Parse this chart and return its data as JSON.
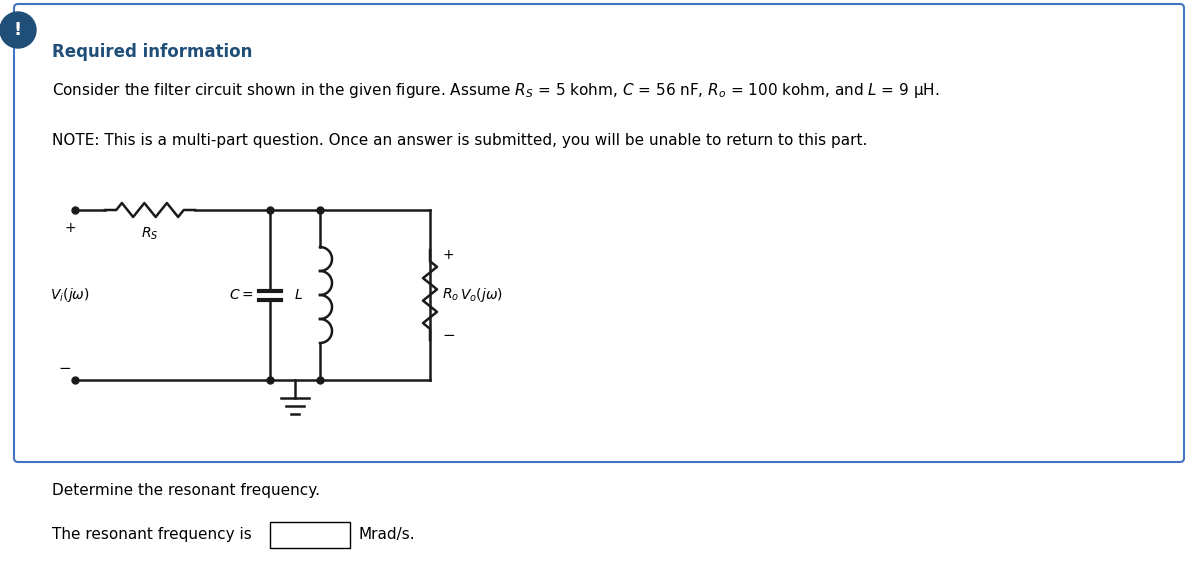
{
  "title": "Required information",
  "line1_plain": "Consider the filter circuit shown in the given figure. Assume ",
  "line1_formula": "R_S = 5 kohm, C = 56 nF, R_o = 100 kohm, and L = 9 μH.",
  "line2": "NOTE: This is a multi-part question. Once an answer is submitted, you will be unable to return to this part.",
  "bottom_line1": "Determine the resonant frequency.",
  "bottom_line2": "The resonant frequency is",
  "bottom_line2_end": "Mrad/s.",
  "title_color": "#1f4e79",
  "text_color": "#333333",
  "border_color": "#4472c4",
  "icon_bg_color": "#1f4e79",
  "icon_text": "!",
  "background_color": "#ffffff",
  "box_bg_color": "#ffffff",
  "circuit_color": "#1a1a1a"
}
